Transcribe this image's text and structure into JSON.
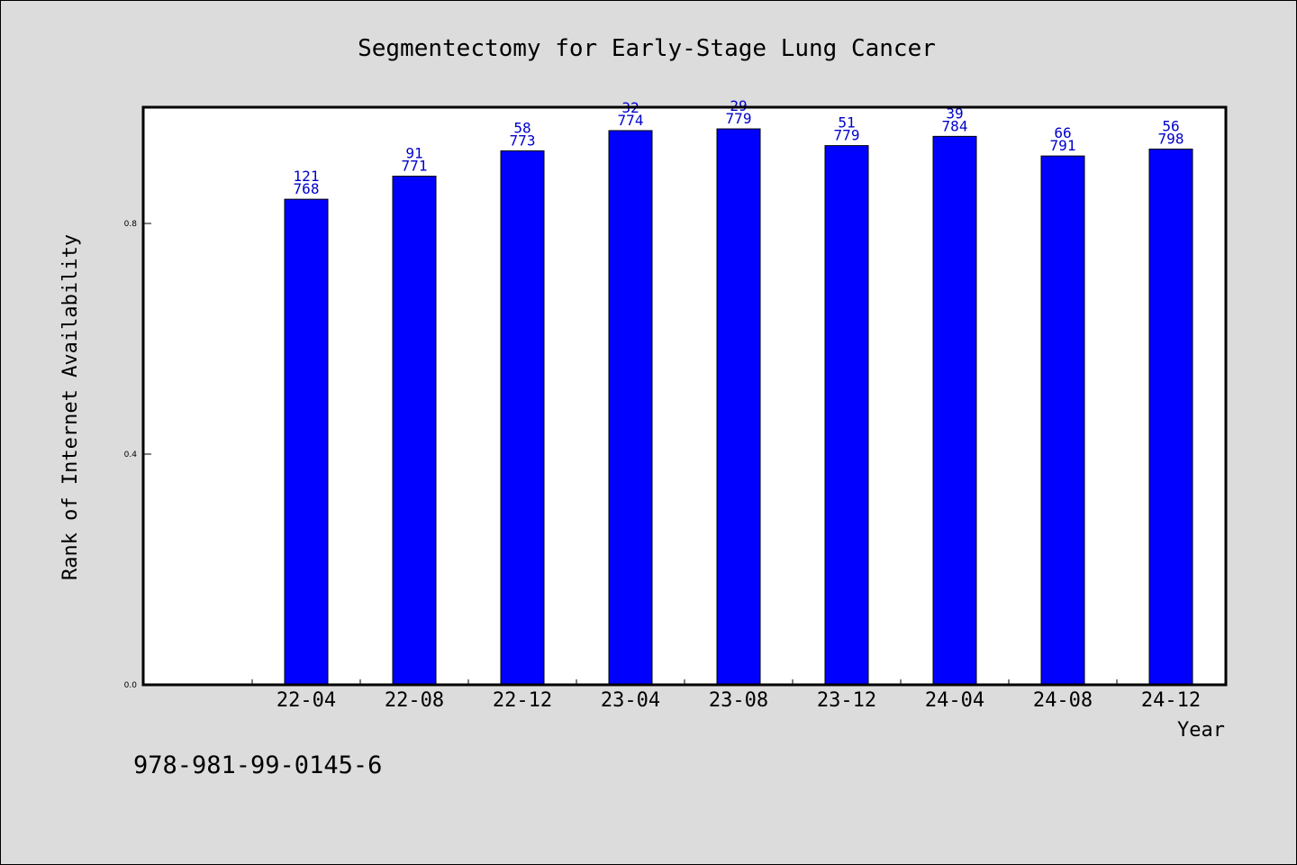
{
  "chart_data": {
    "type": "bar",
    "title": "Segmentectomy for Early-Stage Lung Cancer",
    "xlabel": "Year",
    "ylabel": "Rank of Internet Availability",
    "ylim": [
      0,
      1.0
    ],
    "yticks": [
      0.0,
      0.4,
      0.8
    ],
    "ytick_labels": [
      "0.0",
      "0.4",
      "0.8"
    ],
    "grid": false,
    "bar_color": "#0000ff",
    "label_color": "#0000cc",
    "categories": [
      "22-04",
      "22-08",
      "22-12",
      "23-04",
      "23-08",
      "23-12",
      "24-04",
      "24-08",
      "24-12"
    ],
    "values": [
      0.842,
      0.882,
      0.926,
      0.961,
      0.964,
      0.935,
      0.951,
      0.917,
      0.929
    ],
    "rank_labels": [
      "121",
      "91",
      "58",
      "32",
      "29",
      "51",
      "39",
      "66",
      "56"
    ],
    "count_labels": [
      "768",
      "771",
      "773",
      "774",
      "779",
      "779",
      "784",
      "791",
      "798"
    ]
  },
  "footer": {
    "isbn": "978-981-99-0145-6"
  }
}
